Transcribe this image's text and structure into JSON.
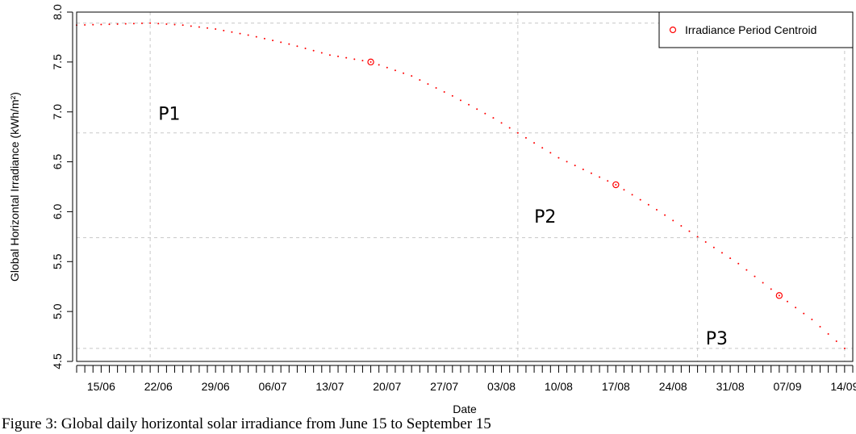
{
  "chart_data": {
    "type": "scatter",
    "xlabel": "Date",
    "ylabel": "Global Horizontal Irradiance (kWh/m²)",
    "ylim": [
      4.5,
      8.0
    ],
    "xlim": [
      "2013-06-12",
      "2013-09-15"
    ],
    "yticks": [
      "4.5",
      "5.0",
      "5.5",
      "6.0",
      "6.5",
      "7.0",
      "7.5",
      "8.0"
    ],
    "xticks": [
      {
        "date": "2013-06-15",
        "label": "15/06"
      },
      {
        "date": "2013-06-22",
        "label": "22/06"
      },
      {
        "date": "2013-06-29",
        "label": "29/06"
      },
      {
        "date": "2013-07-06",
        "label": "06/07"
      },
      {
        "date": "2013-07-13",
        "label": "13/07"
      },
      {
        "date": "2013-07-20",
        "label": "20/07"
      },
      {
        "date": "2013-07-27",
        "label": "27/07"
      },
      {
        "date": "2013-08-03",
        "label": "03/08"
      },
      {
        "date": "2013-08-10",
        "label": "10/08"
      },
      {
        "date": "2013-08-17",
        "label": "17/08"
      },
      {
        "date": "2013-08-24",
        "label": "24/08"
      },
      {
        "date": "2013-08-31",
        "label": "31/08"
      },
      {
        "date": "2013-09-07",
        "label": "07/09"
      },
      {
        "date": "2013-09-14",
        "label": "14/09"
      }
    ],
    "grid": true,
    "vertical_gridlines_dates": [
      "2013-06-21",
      "2013-08-05",
      "2013-08-27",
      "2013-09-14"
    ],
    "horizontal_gridlines_values": [
      4.63,
      5.74,
      6.79,
      7.89
    ],
    "daily_curve": {
      "color": "#ff0000",
      "style": "dotted",
      "points": [
        [
          "2013-06-12",
          7.87
        ],
        [
          "2013-06-17",
          7.88
        ],
        [
          "2013-06-21",
          7.89
        ],
        [
          "2013-06-25",
          7.87
        ],
        [
          "2013-06-29",
          7.83
        ],
        [
          "2013-07-03",
          7.77
        ],
        [
          "2013-07-08",
          7.68
        ],
        [
          "2013-07-13",
          7.57
        ],
        [
          "2013-07-18",
          7.5
        ],
        [
          "2013-07-23",
          7.36
        ],
        [
          "2013-07-28",
          7.16
        ],
        [
          "2013-08-02",
          6.94
        ],
        [
          "2013-08-05",
          6.79
        ],
        [
          "2013-08-10",
          6.54
        ],
        [
          "2013-08-17",
          6.27
        ],
        [
          "2013-08-22",
          6.02
        ],
        [
          "2013-08-27",
          5.75
        ],
        [
          "2013-09-01",
          5.48
        ],
        [
          "2013-09-06",
          5.16
        ],
        [
          "2013-09-10",
          4.92
        ],
        [
          "2013-09-14",
          4.63
        ]
      ]
    },
    "centroids": {
      "name": "Irradiance Period Centroid",
      "color": "#ff0000",
      "points": [
        [
          "2013-07-18",
          7.5
        ],
        [
          "2013-08-17",
          6.27
        ],
        [
          "2013-09-06",
          5.16
        ]
      ]
    },
    "period_labels": [
      {
        "text": "P1",
        "date": "2013-06-22",
        "value": 6.92
      },
      {
        "text": "P2",
        "date": "2013-08-07",
        "value": 5.89
      },
      {
        "text": "P3",
        "date": "2013-08-28",
        "value": 4.67
      }
    ],
    "legend_placement": "top-right"
  },
  "caption": "Figure 3: Global daily horizontal solar irradiance from June 15 to September 15"
}
